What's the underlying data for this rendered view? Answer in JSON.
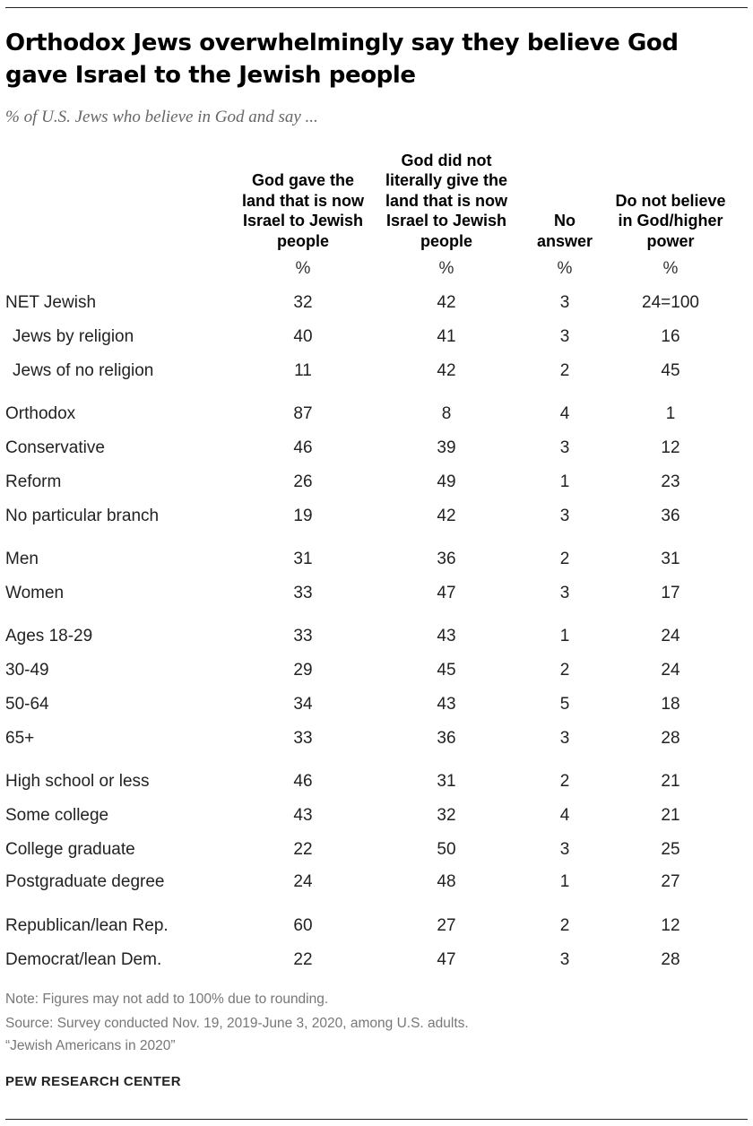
{
  "title": "Orthodox Jews overwhelmingly say they believe God gave Israel to the Jewish people",
  "subtitle": "% of U.S. Jews who believe in God and say ...",
  "chart_data": {
    "type": "table",
    "columns": [
      "God gave the land that is now Israel to Jewish people",
      "God did not literally give the land that is now Israel to Jewish people",
      "No answer",
      "Do not believe in God/higher power"
    ],
    "units": [
      "%",
      "%",
      "%",
      "%"
    ],
    "rows": [
      {
        "label": "NET Jewish",
        "values": [
          "32",
          "42",
          "3",
          "24=100"
        ]
      },
      {
        "label": "Jews by religion",
        "values": [
          "40",
          "41",
          "3",
          "16"
        ]
      },
      {
        "label": "Jews of no religion",
        "values": [
          "11",
          "42",
          "2",
          "45"
        ]
      },
      {
        "label": "Orthodox",
        "values": [
          "87",
          "8",
          "4",
          "1"
        ]
      },
      {
        "label": "Conservative",
        "values": [
          "46",
          "39",
          "3",
          "12"
        ]
      },
      {
        "label": "Reform",
        "values": [
          "26",
          "49",
          "1",
          "23"
        ]
      },
      {
        "label": "No particular branch",
        "values": [
          "19",
          "42",
          "3",
          "36"
        ]
      },
      {
        "label": "Men",
        "values": [
          "31",
          "36",
          "2",
          "31"
        ]
      },
      {
        "label": "Women",
        "values": [
          "33",
          "47",
          "3",
          "17"
        ]
      },
      {
        "label": "Ages 18-29",
        "values": [
          "33",
          "43",
          "1",
          "24"
        ]
      },
      {
        "label": "30-49",
        "values": [
          "29",
          "45",
          "2",
          "24"
        ]
      },
      {
        "label": "50-64",
        "values": [
          "34",
          "43",
          "5",
          "18"
        ]
      },
      {
        "label": "65+",
        "values": [
          "33",
          "36",
          "3",
          "28"
        ]
      },
      {
        "label": "High school or less",
        "values": [
          "46",
          "31",
          "2",
          "21"
        ]
      },
      {
        "label": "Some college",
        "values": [
          "43",
          "32",
          "4",
          "21"
        ]
      },
      {
        "label": "College graduate",
        "values": [
          "22",
          "50",
          "3",
          "25"
        ]
      },
      {
        "label": "Postgraduate degree",
        "values": [
          "24",
          "48",
          "1",
          "27"
        ]
      },
      {
        "label": "Republican/lean Rep.",
        "values": [
          "60",
          "27",
          "2",
          "12"
        ]
      },
      {
        "label": "Democrat/lean Dem.",
        "values": [
          "22",
          "47",
          "3",
          "28"
        ]
      }
    ]
  },
  "notes": {
    "note": "Note: Figures may not add to 100% due to rounding.",
    "source": "Source: Survey conducted Nov. 19, 2019-June 3, 2020, among U.S. adults.",
    "report": "“Jewish Americans in 2020”"
  },
  "logo": "PEW RESEARCH CENTER"
}
